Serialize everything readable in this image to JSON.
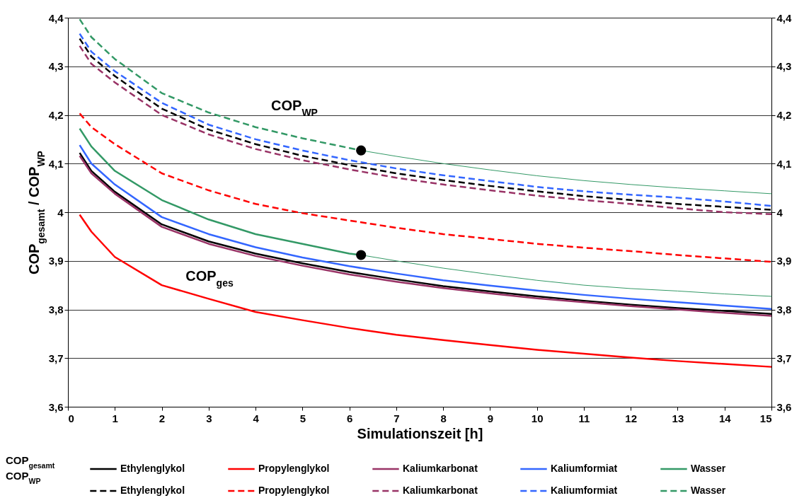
{
  "chart_data": {
    "type": "line",
    "xlabel": "Simulationszeit [h]",
    "ylabel": "COP$_{gesamt}$ / COP$_{WP}$",
    "x": [
      0.25,
      0.5,
      1,
      2,
      3,
      4,
      5,
      6,
      7,
      8,
      9,
      10,
      11,
      12,
      13,
      14,
      15
    ],
    "xlim": [
      0,
      15
    ],
    "xticks": [
      0,
      1,
      2,
      3,
      4,
      5,
      6,
      7,
      8,
      9,
      10,
      11,
      12,
      13,
      14,
      15
    ],
    "ylim": [
      3.6,
      4.4
    ],
    "yticks": [
      {
        "value": 3.6,
        "label": "3,6"
      },
      {
        "value": 3.7,
        "label": "3,7"
      },
      {
        "value": 3.8,
        "label": "3,8"
      },
      {
        "value": 3.9,
        "label": "3,9"
      },
      {
        "value": 4,
        "label": "4"
      },
      {
        "value": 4.1,
        "label": "4,1"
      },
      {
        "value": 4.2,
        "label": "4,2"
      },
      {
        "value": 4.3,
        "label": "4,3"
      },
      {
        "value": 4.4,
        "label": "4,4"
      }
    ],
    "y2lim": [
      3.6,
      4.4
    ],
    "y2ticks": [
      {
        "value": 3.6,
        "label": "3,6"
      },
      {
        "value": 3.7,
        "label": "3,7"
      },
      {
        "value": 3.8,
        "label": "3,8"
      },
      {
        "value": 3.9,
        "label": "3,9"
      },
      {
        "value": 4,
        "label": "4"
      },
      {
        "value": 4.1,
        "label": "4,1"
      },
      {
        "value": 4.2,
        "label": "4,2"
      },
      {
        "value": 4.3,
        "label": "4,3"
      },
      {
        "value": 4.4,
        "label": "4,4"
      }
    ],
    "grid": "y",
    "legend": "bottom",
    "annotations": [
      "COP$_{WP}$",
      "COP$_{ges}$",
      "COP$_{gesamt}$",
      "COP$_{WP}$"
    ],
    "series": [
      {
        "name": "Ethylenglykol",
        "color": "#000000",
        "line_style": "solid",
        "values": [
          4.122,
          4.085,
          4.042,
          3.975,
          3.94,
          3.915,
          3.895,
          3.877,
          3.862,
          3.848,
          3.837,
          3.827,
          3.818,
          3.81,
          3.803,
          3.797,
          3.791
        ]
      },
      {
        "name": "Propylenglykol",
        "color": "#ff0000",
        "line_style": "solid",
        "values": [
          3.995,
          3.96,
          3.908,
          3.85,
          3.822,
          3.795,
          3.778,
          3.762,
          3.748,
          3.737,
          3.727,
          3.717,
          3.709,
          3.701,
          3.694,
          3.688,
          3.682
        ]
      },
      {
        "name": "Kaliumkarbonat",
        "color": "#993366",
        "line_style": "solid",
        "values": [
          4.116,
          4.08,
          4.038,
          3.97,
          3.935,
          3.91,
          3.89,
          3.872,
          3.857,
          3.844,
          3.833,
          3.823,
          3.815,
          3.807,
          3.8,
          3.793,
          3.787
        ]
      },
      {
        "name": "Kaliumformiat",
        "color": "#3366ff",
        "line_style": "solid",
        "values": [
          4.138,
          4.1,
          4.057,
          3.99,
          3.955,
          3.928,
          3.907,
          3.889,
          3.874,
          3.86,
          3.849,
          3.839,
          3.83,
          3.822,
          3.815,
          3.808,
          3.801
        ]
      },
      {
        "name": "Wasser",
        "color": "#339966",
        "line_style": "solid",
        "x": [
          0.25,
          0.5,
          1,
          2,
          3,
          4,
          5,
          6,
          6.25
        ],
        "values": [
          4.172,
          4.135,
          4.085,
          4.025,
          3.985,
          3.955,
          3.935,
          3.915,
          3.912
        ]
      },
      {
        "name": "Ethylenglykol",
        "color": "#000000",
        "line_style": "dashed",
        "values": [
          4.357,
          4.32,
          4.28,
          4.213,
          4.17,
          4.14,
          4.116,
          4.097,
          4.08,
          4.066,
          4.054,
          4.043,
          4.033,
          4.025,
          4.017,
          4.011,
          4.005
        ]
      },
      {
        "name": "Propylenglykol",
        "color": "#ff0000",
        "line_style": "dashed",
        "values": [
          4.203,
          4.175,
          4.14,
          4.08,
          4.045,
          4.017,
          3.998,
          3.983,
          3.968,
          3.955,
          3.945,
          3.935,
          3.927,
          3.92,
          3.912,
          3.905,
          3.898
        ]
      },
      {
        "name": "Kaliumkarbonat",
        "color": "#993366",
        "line_style": "dashed",
        "values": [
          4.342,
          4.305,
          4.267,
          4.2,
          4.16,
          4.13,
          4.107,
          4.088,
          4.071,
          4.057,
          4.045,
          4.034,
          4.025,
          4.017,
          4.008,
          4.0,
          3.996
        ]
      },
      {
        "name": "Kaliumformiat",
        "color": "#3366ff",
        "line_style": "dashed",
        "values": [
          4.367,
          4.33,
          4.29,
          4.225,
          4.18,
          4.15,
          4.127,
          4.107,
          4.09,
          4.076,
          4.064,
          4.052,
          4.043,
          4.036,
          4.03,
          4.022,
          4.013
        ]
      },
      {
        "name": "Wasser",
        "color": "#339966",
        "line_style": "dashed",
        "x": [
          0.25,
          0.5,
          1,
          2,
          3,
          4,
          5,
          6,
          6.25
        ],
        "values": [
          4.397,
          4.36,
          4.315,
          4.245,
          4.205,
          4.175,
          4.152,
          4.132,
          4.127
        ]
      },
      {
        "color": "#339966",
        "line_style": "solid",
        "x": [
          6.25,
          7,
          8,
          9,
          10,
          11,
          12,
          13,
          14,
          15
        ],
        "values": [
          3.912,
          3.9,
          3.885,
          3.872,
          3.86,
          3.85,
          3.843,
          3.838,
          3.832,
          3.827
        ]
      },
      {
        "color": "#339966",
        "line_style": "solid",
        "x": [
          6.25,
          7,
          8,
          9,
          10,
          11,
          12,
          13,
          14,
          15
        ],
        "values": [
          4.127,
          4.115,
          4.1,
          4.087,
          4.075,
          4.065,
          4.057,
          4.05,
          4.044,
          4.038
        ]
      },
      {
        "type": "scatter",
        "color": "#000000",
        "marker": "circle",
        "x": [
          6.25,
          6.25
        ],
        "values": [
          4.127,
          3.912
        ]
      }
    ]
  }
}
